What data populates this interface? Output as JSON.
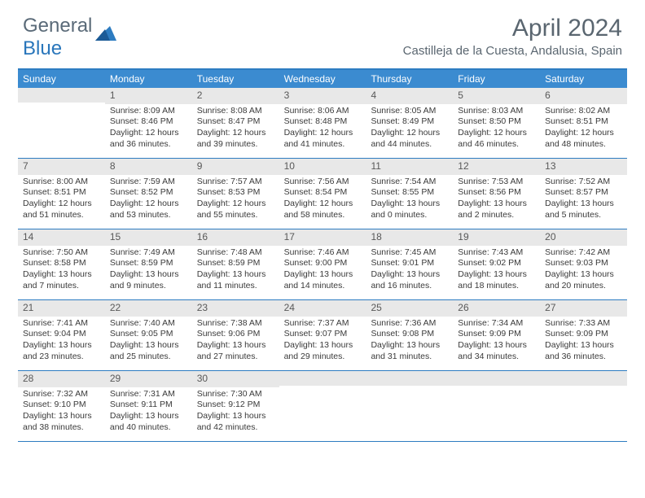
{
  "logo": {
    "text1": "General",
    "text2": "Blue"
  },
  "title": "April 2024",
  "location": "Castilleja de la Cuesta, Andalusia, Spain",
  "weekdays": [
    "Sunday",
    "Monday",
    "Tuesday",
    "Wednesday",
    "Thursday",
    "Friday",
    "Saturday"
  ],
  "colors": {
    "header_bar": "#3b8bd0",
    "rule": "#2d7cc1",
    "daynum_bg": "#e8e8e8",
    "text": "#3a3a3a",
    "title_text": "#5a6670"
  },
  "weeks": [
    [
      null,
      {
        "n": "1",
        "sr": "8:09 AM",
        "ss": "8:46 PM",
        "dl": "12 hours and 36 minutes."
      },
      {
        "n": "2",
        "sr": "8:08 AM",
        "ss": "8:47 PM",
        "dl": "12 hours and 39 minutes."
      },
      {
        "n": "3",
        "sr": "8:06 AM",
        "ss": "8:48 PM",
        "dl": "12 hours and 41 minutes."
      },
      {
        "n": "4",
        "sr": "8:05 AM",
        "ss": "8:49 PM",
        "dl": "12 hours and 44 minutes."
      },
      {
        "n": "5",
        "sr": "8:03 AM",
        "ss": "8:50 PM",
        "dl": "12 hours and 46 minutes."
      },
      {
        "n": "6",
        "sr": "8:02 AM",
        "ss": "8:51 PM",
        "dl": "12 hours and 48 minutes."
      }
    ],
    [
      {
        "n": "7",
        "sr": "8:00 AM",
        "ss": "8:51 PM",
        "dl": "12 hours and 51 minutes."
      },
      {
        "n": "8",
        "sr": "7:59 AM",
        "ss": "8:52 PM",
        "dl": "12 hours and 53 minutes."
      },
      {
        "n": "9",
        "sr": "7:57 AM",
        "ss": "8:53 PM",
        "dl": "12 hours and 55 minutes."
      },
      {
        "n": "10",
        "sr": "7:56 AM",
        "ss": "8:54 PM",
        "dl": "12 hours and 58 minutes."
      },
      {
        "n": "11",
        "sr": "7:54 AM",
        "ss": "8:55 PM",
        "dl": "13 hours and 0 minutes."
      },
      {
        "n": "12",
        "sr": "7:53 AM",
        "ss": "8:56 PM",
        "dl": "13 hours and 2 minutes."
      },
      {
        "n": "13",
        "sr": "7:52 AM",
        "ss": "8:57 PM",
        "dl": "13 hours and 5 minutes."
      }
    ],
    [
      {
        "n": "14",
        "sr": "7:50 AM",
        "ss": "8:58 PM",
        "dl": "13 hours and 7 minutes."
      },
      {
        "n": "15",
        "sr": "7:49 AM",
        "ss": "8:59 PM",
        "dl": "13 hours and 9 minutes."
      },
      {
        "n": "16",
        "sr": "7:48 AM",
        "ss": "8:59 PM",
        "dl": "13 hours and 11 minutes."
      },
      {
        "n": "17",
        "sr": "7:46 AM",
        "ss": "9:00 PM",
        "dl": "13 hours and 14 minutes."
      },
      {
        "n": "18",
        "sr": "7:45 AM",
        "ss": "9:01 PM",
        "dl": "13 hours and 16 minutes."
      },
      {
        "n": "19",
        "sr": "7:43 AM",
        "ss": "9:02 PM",
        "dl": "13 hours and 18 minutes."
      },
      {
        "n": "20",
        "sr": "7:42 AM",
        "ss": "9:03 PM",
        "dl": "13 hours and 20 minutes."
      }
    ],
    [
      {
        "n": "21",
        "sr": "7:41 AM",
        "ss": "9:04 PM",
        "dl": "13 hours and 23 minutes."
      },
      {
        "n": "22",
        "sr": "7:40 AM",
        "ss": "9:05 PM",
        "dl": "13 hours and 25 minutes."
      },
      {
        "n": "23",
        "sr": "7:38 AM",
        "ss": "9:06 PM",
        "dl": "13 hours and 27 minutes."
      },
      {
        "n": "24",
        "sr": "7:37 AM",
        "ss": "9:07 PM",
        "dl": "13 hours and 29 minutes."
      },
      {
        "n": "25",
        "sr": "7:36 AM",
        "ss": "9:08 PM",
        "dl": "13 hours and 31 minutes."
      },
      {
        "n": "26",
        "sr": "7:34 AM",
        "ss": "9:09 PM",
        "dl": "13 hours and 34 minutes."
      },
      {
        "n": "27",
        "sr": "7:33 AM",
        "ss": "9:09 PM",
        "dl": "13 hours and 36 minutes."
      }
    ],
    [
      {
        "n": "28",
        "sr": "7:32 AM",
        "ss": "9:10 PM",
        "dl": "13 hours and 38 minutes."
      },
      {
        "n": "29",
        "sr": "7:31 AM",
        "ss": "9:11 PM",
        "dl": "13 hours and 40 minutes."
      },
      {
        "n": "30",
        "sr": "7:30 AM",
        "ss": "9:12 PM",
        "dl": "13 hours and 42 minutes."
      },
      null,
      null,
      null,
      null
    ]
  ]
}
